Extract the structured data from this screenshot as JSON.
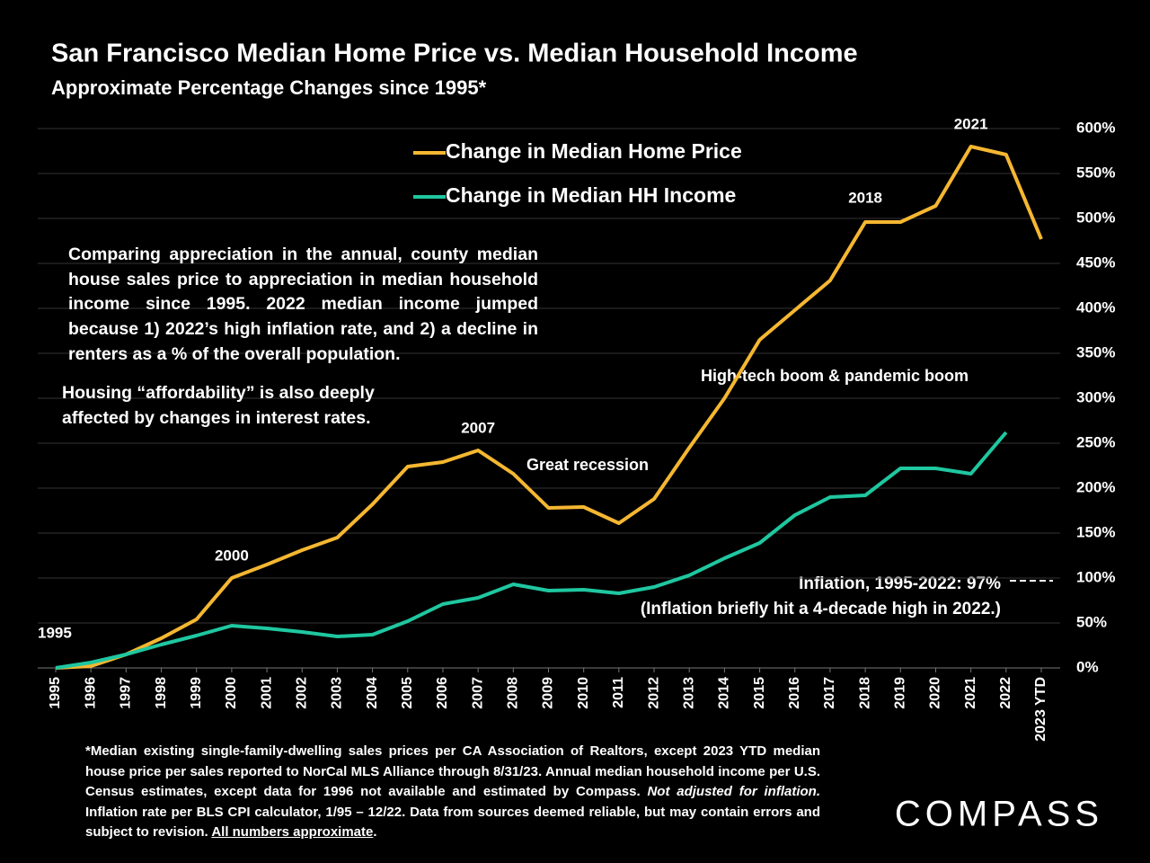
{
  "chart_data": {
    "type": "line",
    "title": "San Francisco Median Home Price vs. Median Household Income",
    "subtitle": "Approximate Percentage Changes since 1995*",
    "categories": [
      "1995",
      "1996",
      "1997",
      "1998",
      "1999",
      "2000",
      "2001",
      "2002",
      "2003",
      "2004",
      "2005",
      "2006",
      "2007",
      "2008",
      "2009",
      "2010",
      "2011",
      "2012",
      "2013",
      "2014",
      "2015",
      "2016",
      "2017",
      "2018",
      "2019",
      "2020",
      "2021",
      "2022",
      "2023 YTD"
    ],
    "series": [
      {
        "name": "Change in Median Home Price",
        "color": "#f5b731",
        "values": [
          0,
          2,
          15,
          33,
          54,
          100,
          115,
          131,
          145,
          182,
          224,
          229,
          242,
          216,
          178,
          179,
          161,
          188,
          245,
          300,
          365,
          398,
          431,
          496,
          496,
          514,
          580,
          571,
          477
        ]
      },
      {
        "name": "Change in Median HH Income",
        "color": "#1fc7a0",
        "values": [
          0,
          6,
          15,
          26,
          36,
          47,
          44,
          40,
          35,
          37,
          52,
          71,
          78,
          93,
          86,
          87,
          83,
          90,
          103,
          122,
          139,
          170,
          190,
          192,
          222,
          222,
          216,
          262,
          null
        ]
      }
    ],
    "ylim": [
      0,
      600
    ],
    "yticks": [
      {
        "value": 0,
        "label": "0%"
      },
      {
        "value": 50,
        "label": "50%"
      },
      {
        "value": 100,
        "label": "100%"
      },
      {
        "value": 150,
        "label": "150%"
      },
      {
        "value": 200,
        "label": "200%"
      },
      {
        "value": 250,
        "label": "250%"
      },
      {
        "value": 300,
        "label": "300%"
      },
      {
        "value": 350,
        "label": "350%"
      },
      {
        "value": 400,
        "label": "400%"
      },
      {
        "value": 450,
        "label": "450%"
      },
      {
        "value": 500,
        "label": "500%"
      },
      {
        "value": 550,
        "label": "550%"
      },
      {
        "value": 600,
        "label": "600%"
      }
    ],
    "grid": true,
    "legend": "top",
    "inflation": {
      "value": 97,
      "label": "Inflation, 1995-2022:  97%",
      "note": "(Inflation briefly hit a 4-decade high in 2022.)"
    },
    "annotations": {
      "recession": "Great recession",
      "boom": "High-tech boom & pandemic boom",
      "comparison": "Comparing appreciation in the annual, county median house sales price to appreciation in median household income since 1995. 2022 median income jumped because 1) 2022’s high inflation rate, and 2) a decline in renters as a % of the overall population.",
      "affordability": "Housing “affordability” is also deeply affected by changes in interest rates."
    },
    "footnote": {
      "part1": "*Median existing single-family-dwelling sales prices per CA Association of Realtors, except 2023 YTD median house price per sales reported to NorCal MLS Alliance through 8/31/23. Annual median household income per U.S. Census estimates, except data for 1996 not available and estimated by Compass. ",
      "italic": "Not adjusted for inflation.",
      "part2": " Inflation rate per BLS CPI calculator, 1/95 – 12/22. Data from sources deemed reliable, but may contain errors and subject to revision. ",
      "underline": "All numbers approximate",
      "part3": "."
    },
    "brand": "COMPASS"
  }
}
